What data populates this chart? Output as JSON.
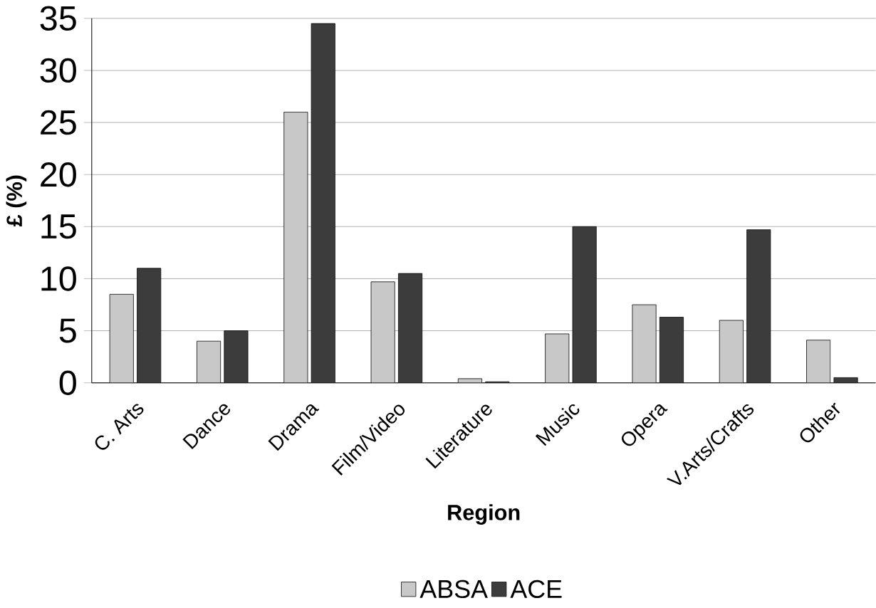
{
  "chart_data": {
    "type": "bar",
    "xlabel": "Region",
    "ylabel": "£ (%)",
    "categories": [
      "C. Arts",
      "Dance",
      "Drama",
      "Film/Video",
      "Literature",
      "Music",
      "Opera",
      "V.Arts/Crafts",
      "Other"
    ],
    "series": [
      {
        "name": "ABSA",
        "color": "#c8c8c8",
        "values": [
          8.5,
          4,
          26,
          9.7,
          0.4,
          4.7,
          7.5,
          6,
          4.1
        ]
      },
      {
        "name": "ACE",
        "color": "#3c3c3c",
        "values": [
          11,
          5,
          34.5,
          10.5,
          0.1,
          15,
          6.3,
          14.7,
          0.5
        ]
      }
    ],
    "ylim": [
      0,
      35
    ],
    "yticks": [
      0,
      5,
      10,
      15,
      20,
      25,
      30,
      35
    ],
    "grid": "y",
    "legend": "bottom"
  }
}
